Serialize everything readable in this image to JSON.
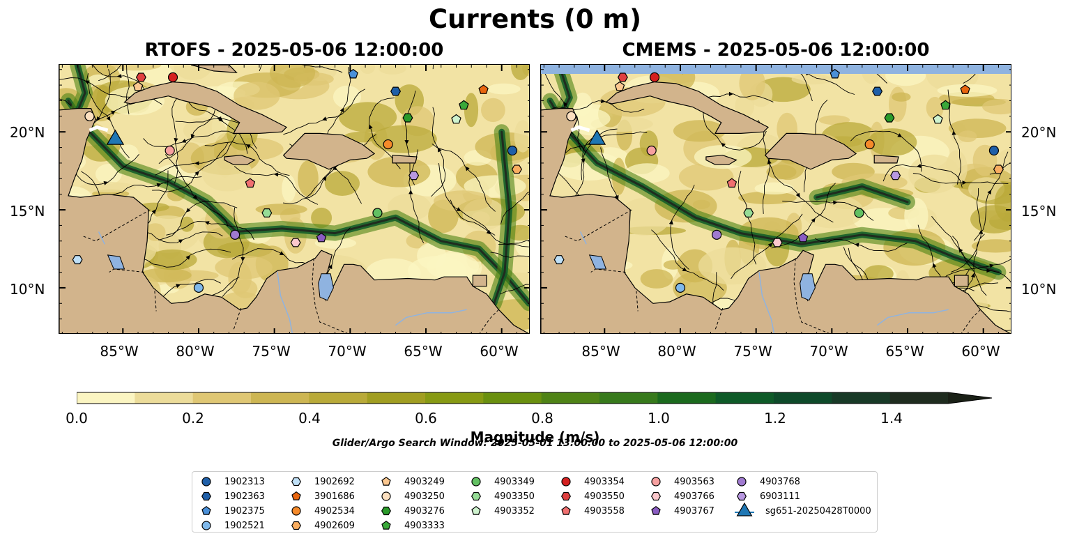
{
  "suptitle": "Currents (0 m)",
  "panels": [
    {
      "title": "RTOFS - 2025-05-06 12:00:00"
    },
    {
      "title": "CMEMS - 2025-05-06 12:00:00"
    }
  ],
  "lat_labels": [
    "20°N",
    "15°N",
    "10°N"
  ],
  "lon_labels": [
    "85°W",
    "80°W",
    "75°W",
    "70°W",
    "65°W",
    "60°W"
  ],
  "colorbar": {
    "ticks": [
      "0.0",
      "0.2",
      "0.4",
      "0.6",
      "0.8",
      "1.0",
      "1.2",
      "1.4"
    ],
    "label": "Magnitude (m/s)",
    "colors": [
      "#fbf5c2",
      "#ecdc9a",
      "#dfc774",
      "#cdb653",
      "#b9aa39",
      "#a19e21",
      "#879a13",
      "#6a900f",
      "#4f8316",
      "#377a1c",
      "#1b6a1e",
      "#0e5a28",
      "#0e4a2a",
      "#183a27",
      "#1f2c1f",
      "#1a2016"
    ]
  },
  "search_window": "Glider/Argo Search Window: 2025-05-01 13:00:00 to 2025-05-06 12:00:00",
  "colors": {
    "land": "#d2b48c",
    "lakes": "#8fb3e0",
    "sea_fill": "#f2e3a4"
  },
  "legend": [
    {
      "label": "1902313",
      "color": "#1f5fa8",
      "shape": "circle"
    },
    {
      "label": "1902363",
      "color": "#1f5fa8",
      "shape": "hexagon"
    },
    {
      "label": "1902375",
      "color": "#4a90d9",
      "shape": "pentagon"
    },
    {
      "label": "1902521",
      "color": "#7fb8ea",
      "shape": "circle"
    },
    {
      "label": "1902692",
      "color": "#bfe0f7",
      "shape": "hexagon"
    },
    {
      "label": "3901686",
      "color": "#e8650e",
      "shape": "pentagon"
    },
    {
      "label": "4902534",
      "color": "#f58a2a",
      "shape": "circle"
    },
    {
      "label": "4902609",
      "color": "#f9ad60",
      "shape": "hexagon"
    },
    {
      "label": "4903249",
      "color": "#fcc890",
      "shape": "pentagon"
    },
    {
      "label": "4903250",
      "color": "#fde0c0",
      "shape": "circle"
    },
    {
      "label": "4903276",
      "color": "#2a9a2a",
      "shape": "hexagon"
    },
    {
      "label": "4903333",
      "color": "#3aa83a",
      "shape": "pentagon"
    },
    {
      "label": "4903349",
      "color": "#62c062",
      "shape": "circle"
    },
    {
      "label": "4903350",
      "color": "#96dc96",
      "shape": "hexagon"
    },
    {
      "label": "4903352",
      "color": "#cff3cf",
      "shape": "pentagon"
    },
    {
      "label": "4903354",
      "color": "#d42020",
      "shape": "circle"
    },
    {
      "label": "4903550",
      "color": "#e04040",
      "shape": "hexagon"
    },
    {
      "label": "4903558",
      "color": "#f07070",
      "shape": "pentagon"
    },
    {
      "label": "4903563",
      "color": "#f7a0a0",
      "shape": "circle"
    },
    {
      "label": "4903766",
      "color": "#fcc8cc",
      "shape": "hexagon"
    },
    {
      "label": "4903767",
      "color": "#8a5cc2",
      "shape": "pentagon"
    },
    {
      "label": "4903768",
      "color": "#a07ad0",
      "shape": "circle"
    },
    {
      "label": "6903111",
      "color": "#b898e0",
      "shape": "hexagon"
    },
    {
      "label": "sg651-20250428T0000",
      "color": "#1f77b4",
      "shape": "triangle"
    }
  ],
  "floats": [
    {
      "id": "1902313",
      "lon": -59.3,
      "lat": 18.8
    },
    {
      "id": "1902363",
      "lon": -67.0,
      "lat": 22.6
    },
    {
      "id": "1902375",
      "lon": -69.8,
      "lat": 23.7
    },
    {
      "id": "1902521",
      "lon": -80.0,
      "lat": 10.0
    },
    {
      "id": "1902692",
      "lon": -88.0,
      "lat": 11.8
    },
    {
      "id": "3901686",
      "lon": -61.2,
      "lat": 22.7
    },
    {
      "id": "4902534",
      "lon": -67.5,
      "lat": 19.2
    },
    {
      "id": "4902609",
      "lon": -59.0,
      "lat": 17.6
    },
    {
      "id": "4903249",
      "lon": -84.0,
      "lat": 22.9
    },
    {
      "id": "4903250",
      "lon": -87.2,
      "lat": 21.0
    },
    {
      "id": "4903276",
      "lon": -66.2,
      "lat": 20.9
    },
    {
      "id": "4903333",
      "lon": -62.5,
      "lat": 21.7
    },
    {
      "id": "4903349",
      "lon": -68.2,
      "lat": 14.8
    },
    {
      "id": "4903350",
      "lon": -75.5,
      "lat": 14.8
    },
    {
      "id": "4903352",
      "lon": -63.0,
      "lat": 20.8
    },
    {
      "id": "4903354",
      "lon": -81.7,
      "lat": 23.5
    },
    {
      "id": "4903550",
      "lon": -83.8,
      "lat": 23.5
    },
    {
      "id": "4903558",
      "lon": -76.6,
      "lat": 16.7
    },
    {
      "id": "4903563",
      "lon": -81.9,
      "lat": 18.8
    },
    {
      "id": "4903766",
      "lon": -73.6,
      "lat": 12.9
    },
    {
      "id": "4903767",
      "lon": -71.9,
      "lat": 13.2
    },
    {
      "id": "4903768",
      "lon": -77.6,
      "lat": 13.4
    },
    {
      "id": "6903111",
      "lon": -65.8,
      "lat": 17.2
    },
    {
      "id": "sg651-20250428T0000",
      "lon": -85.5,
      "lat": 19.5
    }
  ]
}
